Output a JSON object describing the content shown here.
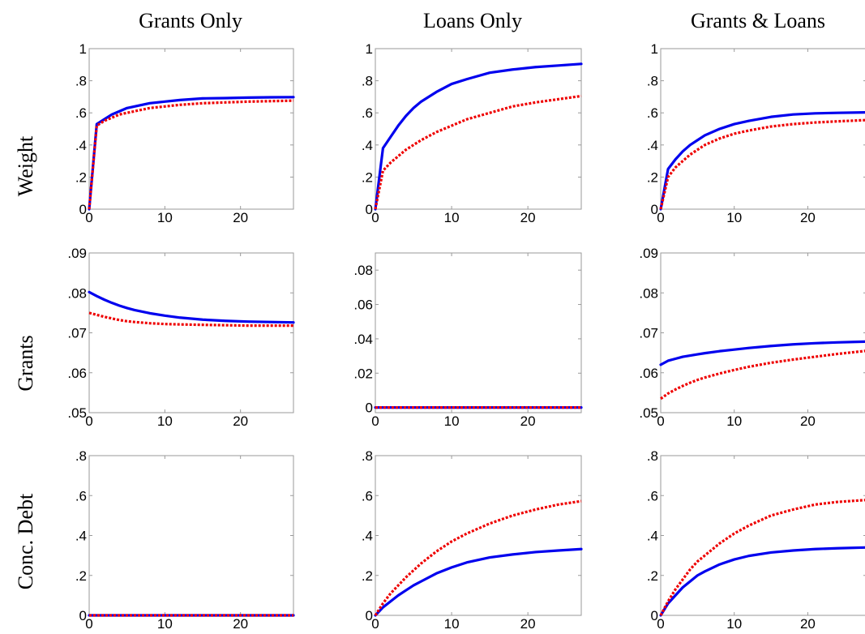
{
  "column_titles": [
    "Grants Only",
    "Loans Only",
    "Grants & Loans"
  ],
  "row_titles": [
    "Weight",
    "Grants",
    "Conc. Debt"
  ],
  "colors": {
    "solid": "#0000ee",
    "dotted": "#ee0000",
    "frame": "#9a9a9a"
  },
  "chart_data": [
    {
      "type": "line",
      "row": 0,
      "col": 0,
      "xlim": [
        0,
        27
      ],
      "ylim": [
        0,
        1
      ],
      "xticks": [
        0,
        10,
        20
      ],
      "yticks": [
        0,
        0.2,
        0.4,
        0.6,
        0.8,
        1
      ],
      "x": [
        0,
        1,
        2,
        3,
        4,
        5,
        6,
        8,
        10,
        12,
        15,
        18,
        21,
        24,
        27
      ],
      "series": [
        {
          "style": "solid",
          "values": [
            0,
            0.53,
            0.56,
            0.59,
            0.61,
            0.63,
            0.64,
            0.66,
            0.67,
            0.68,
            0.69,
            0.692,
            0.695,
            0.697,
            0.698
          ]
        },
        {
          "style": "dotted",
          "values": [
            0,
            0.52,
            0.55,
            0.57,
            0.59,
            0.6,
            0.61,
            0.63,
            0.64,
            0.65,
            0.66,
            0.665,
            0.67,
            0.673,
            0.676
          ]
        }
      ]
    },
    {
      "type": "line",
      "row": 0,
      "col": 1,
      "xlim": [
        0,
        27
      ],
      "ylim": [
        0,
        1
      ],
      "xticks": [
        0,
        10,
        20
      ],
      "yticks": [
        0,
        0.2,
        0.4,
        0.6,
        0.8,
        1
      ],
      "x": [
        0,
        1,
        2,
        3,
        4,
        5,
        6,
        8,
        10,
        12,
        15,
        18,
        21,
        24,
        27
      ],
      "series": [
        {
          "style": "solid",
          "values": [
            0,
            0.38,
            0.45,
            0.52,
            0.58,
            0.63,
            0.67,
            0.73,
            0.78,
            0.81,
            0.85,
            0.87,
            0.885,
            0.895,
            0.905
          ]
        },
        {
          "style": "dotted",
          "values": [
            0,
            0.24,
            0.29,
            0.33,
            0.37,
            0.4,
            0.43,
            0.48,
            0.52,
            0.56,
            0.6,
            0.64,
            0.665,
            0.685,
            0.705
          ]
        }
      ]
    },
    {
      "type": "line",
      "row": 0,
      "col": 2,
      "xlim": [
        0,
        28
      ],
      "ylim": [
        0,
        1
      ],
      "xticks": [
        0,
        10,
        20
      ],
      "yticks": [
        0,
        0.2,
        0.4,
        0.6,
        0.8,
        1
      ],
      "x": [
        0,
        1,
        2,
        3,
        4,
        5,
        6,
        8,
        10,
        12,
        15,
        18,
        21,
        24,
        28
      ],
      "series": [
        {
          "style": "solid",
          "values": [
            0,
            0.25,
            0.31,
            0.36,
            0.4,
            0.43,
            0.46,
            0.5,
            0.53,
            0.55,
            0.575,
            0.59,
            0.597,
            0.6,
            0.603
          ]
        },
        {
          "style": "dotted",
          "values": [
            0,
            0.2,
            0.26,
            0.3,
            0.34,
            0.37,
            0.4,
            0.44,
            0.47,
            0.49,
            0.515,
            0.53,
            0.54,
            0.547,
            0.555
          ]
        }
      ]
    },
    {
      "type": "line",
      "row": 1,
      "col": 0,
      "xlim": [
        0,
        27
      ],
      "ylim": [
        0.05,
        0.09
      ],
      "xticks": [
        0,
        10,
        20
      ],
      "yticks": [
        0.05,
        0.06,
        0.07,
        0.08,
        0.09
      ],
      "x": [
        0,
        1,
        2,
        3,
        4,
        5,
        6,
        8,
        10,
        12,
        15,
        18,
        21,
        24,
        27
      ],
      "series": [
        {
          "style": "solid",
          "values": [
            0.0802,
            0.0792,
            0.0783,
            0.0775,
            0.0768,
            0.0762,
            0.0757,
            0.0749,
            0.0743,
            0.0738,
            0.0733,
            0.073,
            0.0728,
            0.0727,
            0.0726
          ]
        },
        {
          "style": "dotted",
          "values": [
            0.075,
            0.0745,
            0.074,
            0.0736,
            0.0732,
            0.0729,
            0.0727,
            0.0724,
            0.0722,
            0.0721,
            0.072,
            0.0719,
            0.0718,
            0.0718,
            0.0718
          ]
        }
      ]
    },
    {
      "type": "line",
      "row": 1,
      "col": 1,
      "xlim": [
        0,
        27
      ],
      "ylim": [
        -0.003,
        0.09
      ],
      "xticks": [
        0,
        10,
        20
      ],
      "yticks": [
        0,
        0.02,
        0.04,
        0.06,
        0.08
      ],
      "x": [
        0,
        27
      ],
      "series": [
        {
          "style": "solid",
          "values": [
            0,
            0
          ]
        },
        {
          "style": "dotted",
          "values": [
            0,
            0
          ]
        }
      ]
    },
    {
      "type": "line",
      "row": 1,
      "col": 2,
      "xlim": [
        0,
        28
      ],
      "ylim": [
        0.05,
        0.09
      ],
      "xticks": [
        0,
        10,
        20
      ],
      "yticks": [
        0.05,
        0.06,
        0.07,
        0.08,
        0.09
      ],
      "x": [
        0,
        1,
        2,
        3,
        4,
        5,
        6,
        8,
        10,
        12,
        15,
        18,
        21,
        24,
        28
      ],
      "series": [
        {
          "style": "solid",
          "values": [
            0.062,
            0.063,
            0.0635,
            0.064,
            0.0643,
            0.0646,
            0.0649,
            0.0654,
            0.0658,
            0.0662,
            0.0667,
            0.0671,
            0.0674,
            0.0676,
            0.0678
          ]
        },
        {
          "style": "dotted",
          "values": [
            0.0535,
            0.0548,
            0.0558,
            0.0567,
            0.0575,
            0.0582,
            0.0588,
            0.0598,
            0.0607,
            0.0615,
            0.0625,
            0.0633,
            0.064,
            0.0647,
            0.0655
          ]
        }
      ]
    },
    {
      "type": "line",
      "row": 2,
      "col": 0,
      "xlim": [
        0,
        27
      ],
      "ylim": [
        0,
        0.8
      ],
      "xticks": [
        0,
        10,
        20
      ],
      "yticks": [
        0,
        0.2,
        0.4,
        0.6,
        0.8
      ],
      "x": [
        0,
        27
      ],
      "series": [
        {
          "style": "solid",
          "values": [
            0,
            0
          ]
        },
        {
          "style": "dotted",
          "values": [
            0,
            0
          ]
        }
      ]
    },
    {
      "type": "line",
      "row": 2,
      "col": 1,
      "xlim": [
        0,
        27
      ],
      "ylim": [
        0,
        0.8
      ],
      "xticks": [
        0,
        10,
        20
      ],
      "yticks": [
        0,
        0.2,
        0.4,
        0.6,
        0.8
      ],
      "x": [
        0,
        1,
        2,
        3,
        4,
        5,
        6,
        8,
        10,
        12,
        15,
        18,
        21,
        24,
        27
      ],
      "series": [
        {
          "style": "solid",
          "values": [
            0,
            0.04,
            0.07,
            0.1,
            0.125,
            0.15,
            0.17,
            0.21,
            0.24,
            0.265,
            0.29,
            0.305,
            0.317,
            0.325,
            0.332
          ]
        },
        {
          "style": "dotted",
          "values": [
            0,
            0.06,
            0.11,
            0.15,
            0.19,
            0.225,
            0.26,
            0.32,
            0.37,
            0.41,
            0.46,
            0.5,
            0.53,
            0.555,
            0.572
          ]
        }
      ]
    },
    {
      "type": "line",
      "row": 2,
      "col": 2,
      "xlim": [
        0,
        28
      ],
      "ylim": [
        0,
        0.8
      ],
      "xticks": [
        0,
        10,
        20
      ],
      "yticks": [
        0,
        0.2,
        0.4,
        0.6,
        0.8
      ],
      "x": [
        0,
        1,
        2,
        3,
        4,
        5,
        6,
        8,
        10,
        12,
        15,
        18,
        21,
        24,
        28
      ],
      "series": [
        {
          "style": "solid",
          "values": [
            0,
            0.06,
            0.1,
            0.14,
            0.17,
            0.2,
            0.22,
            0.255,
            0.28,
            0.298,
            0.315,
            0.325,
            0.332,
            0.336,
            0.34
          ]
        },
        {
          "style": "dotted",
          "values": [
            0,
            0.07,
            0.13,
            0.18,
            0.23,
            0.27,
            0.3,
            0.36,
            0.41,
            0.45,
            0.5,
            0.53,
            0.555,
            0.568,
            0.578
          ]
        }
      ]
    }
  ]
}
